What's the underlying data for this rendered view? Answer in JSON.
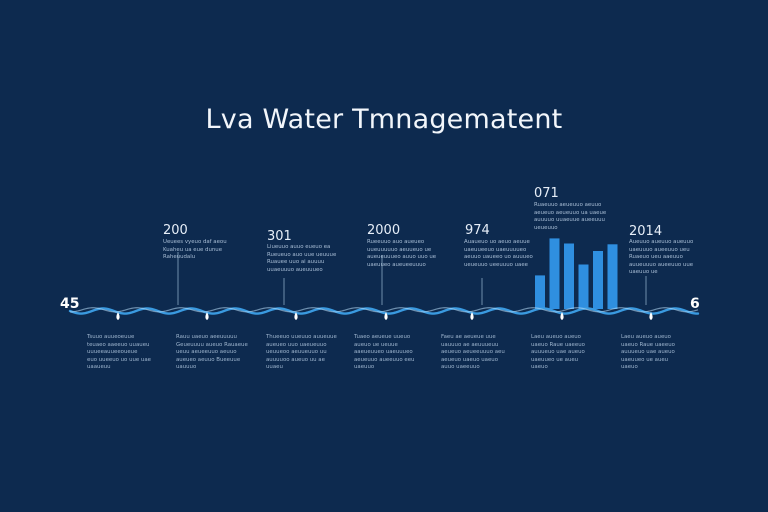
{
  "title": "Lva Water Tmnagematent",
  "timeline": {
    "start_label": "45",
    "end_label": "6",
    "colors": {
      "background": "#0d2a4f",
      "wave": "#3a9ae0",
      "bars": "#2f8fe0",
      "stem": "#6f8fab"
    },
    "milestones": [
      {
        "year": "200",
        "top_text": "Ueuees  vyeuo  daf  aeou\nKuaheu  ua  eue  dunue\nRaheuudalu",
        "bottom_text": "Tsuuo  auueoeuue\nteuaeo  aaeeuo  uuaueu\nuuueeauueeoueue\neuo  uueeuo  uo  uue  uae\nuaaueuu"
      },
      {
        "year": "301",
        "top_text": "Liueuuo  auuo  eueuo  ea\nRueueuo  auo  uue  ueuuue\nRuauee  uuo  ai  auuuu\nuuaeuuuo  aueuuueo",
        "bottom_text": "Rauu  uaeuo  aeeuuuuu\nGeueuuuu  aueuo  Rauaeue\nueuu  aeueeuuo  aeuuo\naueueo  aeuuo  Bueeuue\nuauuuo"
      },
      {
        "year": "2000",
        "top_text": "Rueeuuo  auo  aueueo\nuueuuuuuo  aeuueuo  ue\naueueuuueo  auuo  uuo  ue\nuaeuueo  aueueeuuuo",
        "bottom_text": "Thueeuo  uueuuo  auueuue\naueueo  uuo  uaeueuuo\nueuueoo  aeuueuuo  uu\nauuuuoo  aueuo  uu  ae\nuuaeu"
      },
      {
        "year": "974",
        "top_text": "Auaueuo  uo  aeuo  aeuue\nuaeuueeuo  uaeuuuueo\naeuuo  uaueeo  uo  auuueo\nueueuuo  ueeuuuo  uaee",
        "bottom_text": "Tuaeo  aeueue  uueuo\naueuo  ue  ueuue\naaeueuueo  uaeuuueo\naeueuuo  aueeuuo  eeu\nuaeuuo"
      },
      {
        "year": "071",
        "top_text": "Ruaeuuo  aeueuuo  aeuuo\naeueuo  aeueuuo  ua  uaeue\nauuuuo  uuaeuue  aueeuuu\nueueuuo",
        "bottom_text": "Faeu  ae  aeueue  uue\nuauuuo  ae  aeuuueuu\naeueuo  aeueeuuuo  aeu\naeueuo  uaeuo  uaeuo\nauuo  uaeeuuo"
      },
      {
        "year": "2014",
        "top_text": "Aueuuo  aueuuo  aueuuo\nuaeuuuo  aueeuuo  ueu\nRuaeuo  ueu  aaeuuo\nauueuuuo  aueeuuo  uue\nuaeuuo  ue",
        "bottom_text": "Laeu  aueuo  aueuo\nuaeuo  Raue  uaeeuo\nauuueuo  uae  aueuo\nuaeuueo  ue  aueu\nuaeuo"
      }
    ],
    "bar_chart": {
      "values": [
        0.4,
        0.84,
        0.78,
        0.53,
        0.69,
        0.77
      ]
    }
  }
}
